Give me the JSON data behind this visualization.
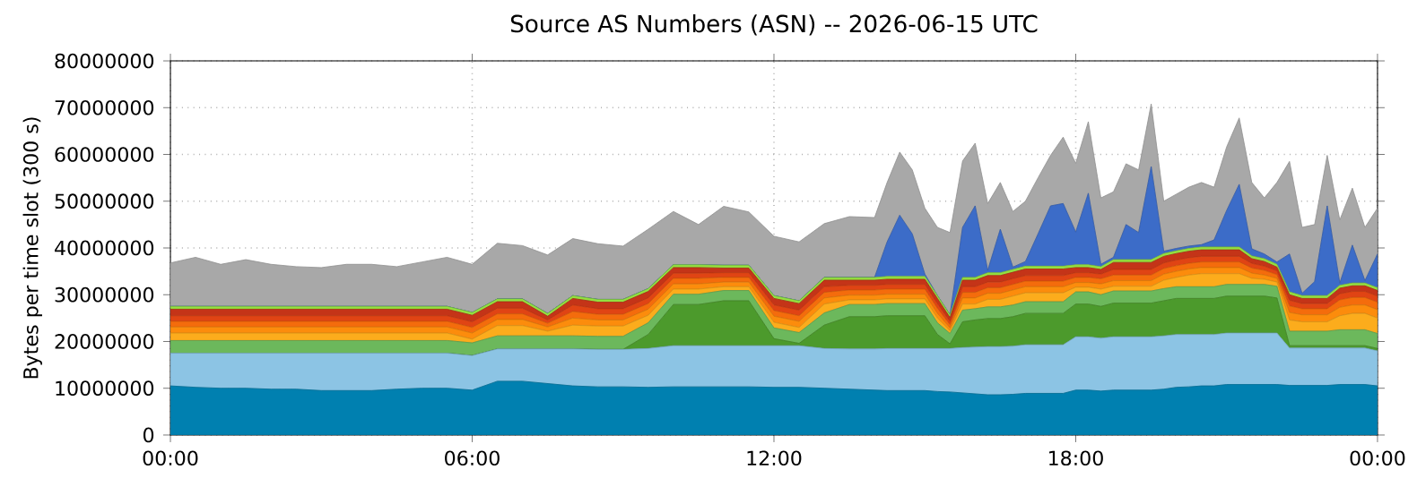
{
  "chart_data": {
    "type": "area",
    "stacked": true,
    "title": "Source AS Numbers (ASN) -- 2026-06-15 UTC",
    "ylabel": "Bytes per time slot (300 s)",
    "grid": true,
    "xlim": [
      0,
      24
    ],
    "ylim": [
      0,
      80000000
    ],
    "xticks": [
      {
        "value": 0,
        "label": "00:00"
      },
      {
        "value": 6,
        "label": "06:00"
      },
      {
        "value": 12,
        "label": "12:00"
      },
      {
        "value": 18,
        "label": "18:00"
      },
      {
        "value": 24,
        "label": "00:00"
      }
    ],
    "yticks": [
      0,
      10000000,
      20000000,
      30000000,
      40000000,
      50000000,
      60000000,
      70000000,
      80000000
    ],
    "x": [
      0,
      0.5,
      1,
      1.5,
      2,
      2.5,
      3,
      3.5,
      4,
      4.5,
      5,
      5.5,
      6,
      6.5,
      7,
      7.5,
      8,
      8.5,
      9,
      9.5,
      10,
      10.5,
      11,
      11.5,
      12,
      12.5,
      13,
      13.5,
      14,
      14.25,
      14.5,
      14.75,
      15,
      15.25,
      15.5,
      15.75,
      16,
      16.25,
      16.5,
      16.75,
      17,
      17.25,
      17.5,
      17.75,
      18,
      18.25,
      18.5,
      18.75,
      19,
      19.25,
      19.5,
      19.75,
      20,
      20.25,
      20.5,
      20.75,
      21,
      21.25,
      21.5,
      21.75,
      22,
      22.25,
      22.5,
      22.75,
      23,
      23.25,
      23.5,
      23.75,
      24
    ],
    "series": [
      {
        "color": "#0080b0",
        "values": [
          10500000.0,
          10200000.0,
          10000000.0,
          10000000.0,
          9800000.0,
          9800000.0,
          9500000.0,
          9500000.0,
          9500000.0,
          9800000.0,
          10000000.0,
          10000000.0,
          9600000.0,
          11500000.0,
          11500000.0,
          11000000.0,
          10500000.0,
          10300000.0,
          10300000.0,
          10200000.0,
          10300000.0,
          10300000.0,
          10300000.0,
          10300000.0,
          10200000.0,
          10200000.0,
          10000000.0,
          9800000.0,
          9600000.0,
          9500000.0,
          9500000.0,
          9500000.0,
          9500000.0,
          9300000.0,
          9200000.0,
          9000000.0,
          8800000.0,
          8600000.0,
          8600000.0,
          8700000.0,
          8900000.0,
          8900000.0,
          8900000.0,
          8900000.0,
          9600000.0,
          9600000.0,
          9400000.0,
          9600000.0,
          9600000.0,
          9600000.0,
          9600000.0,
          9800000.0,
          10200000.0,
          10300000.0,
          10500000.0,
          10500000.0,
          10800000.0,
          10800000.0,
          10800000.0,
          10800000.0,
          10800000.0,
          10600000.0,
          10600000.0,
          10600000.0,
          10600000.0,
          10800000.0,
          10800000.0,
          10800000.0,
          10500000.0
        ]
      },
      {
        "color": "#8cc4e4",
        "values": [
          7000000.0,
          7300000.0,
          7500000.0,
          7500000.0,
          7700000.0,
          7700000.0,
          8000000.0,
          8000000.0,
          8000000.0,
          7700000.0,
          7500000.0,
          7500000.0,
          7400000.0,
          6900000.0,
          6900000.0,
          7400000.0,
          7900000.0,
          8000000.0,
          8000000.0,
          8300000.0,
          8800000.0,
          8800000.0,
          8800000.0,
          8800000.0,
          8900000.0,
          8900000.0,
          8500000.0,
          8600000.0,
          8800000.0,
          9000000.0,
          9000000.0,
          9000000.0,
          9000000.0,
          9200000.0,
          9300000.0,
          9700000.0,
          10000000.0,
          10300000.0,
          10300000.0,
          10300000.0,
          10400000.0,
          10400000.0,
          10400000.0,
          10400000.0,
          11400000.0,
          11400000.0,
          11300000.0,
          11400000.0,
          11400000.0,
          11400000.0,
          11400000.0,
          11400000.0,
          11300000.0,
          11200000.0,
          11000000.0,
          11000000.0,
          11000000.0,
          11000000.0,
          11000000.0,
          11000000.0,
          11000000.0,
          8000000.0,
          8000000.0,
          8000000.0,
          8000000.0,
          7800000.0,
          7800000.0,
          7800000.0,
          7500000.0
        ]
      },
      {
        "color": "#4c9a2c",
        "values": [
          0,
          0,
          0,
          0,
          0,
          0,
          0,
          0,
          0,
          0,
          0,
          0,
          0,
          0,
          0,
          0,
          0,
          0,
          0,
          3000000.0,
          8800000.0,
          8800000.0,
          9600000.0,
          9600000.0,
          1500000.0,
          500000.0,
          5000000.0,
          6900000.0,
          6900000.0,
          7000000.0,
          7000000.0,
          7000000.0,
          7000000.0,
          3000000.0,
          1000000.0,
          5500000.0,
          5800000.0,
          6000000.0,
          6000000.0,
          6300000.0,
          6700000.0,
          6700000.0,
          6700000.0,
          6700000.0,
          7000000.0,
          7000000.0,
          6800000.0,
          7200000.0,
          7200000.0,
          7200000.0,
          7200000.0,
          7500000.0,
          7700000.0,
          7700000.0,
          7700000.0,
          7700000.0,
          7900000.0,
          7900000.0,
          7900000.0,
          7900000.0,
          7500000.0,
          500000.0,
          500000.0,
          500000.0,
          500000.0,
          500000.0,
          500000.0,
          500000.0,
          500000.0
        ]
      },
      {
        "color": "#6cb85c",
        "values": [
          2700000.0,
          2700000.0,
          2700000.0,
          2700000.0,
          2700000.0,
          2700000.0,
          2700000.0,
          2700000.0,
          2700000.0,
          2700000.0,
          2700000.0,
          2700000.0,
          2700000.0,
          2800000.0,
          2800000.0,
          2800000.0,
          2800000.0,
          2800000.0,
          2800000.0,
          2500000.0,
          2200000.0,
          2200000.0,
          2200000.0,
          2200000.0,
          2300000.0,
          2300000.0,
          2600000.0,
          2600000.0,
          2600000.0,
          2600000.0,
          2600000.0,
          2600000.0,
          2600000.0,
          2500000.0,
          2200000.0,
          2500000.0,
          2400000.0,
          2500000.0,
          2500000.0,
          2500000.0,
          2500000.0,
          2500000.0,
          2500000.0,
          2500000.0,
          2600000.0,
          2600000.0,
          2500000.0,
          2600000.0,
          2600000.0,
          2600000.0,
          2600000.0,
          2600000.0,
          2500000.0,
          2500000.0,
          2500000.0,
          2500000.0,
          2500000.0,
          2500000.0,
          2500000.0,
          2500000.0,
          2500000.0,
          3100000.0,
          3100000.0,
          3100000.0,
          3100000.0,
          3400000.0,
          3400000.0,
          3400000.0,
          3200000.0
        ]
      },
      {
        "color": "#fcac1c",
        "values": [
          1600000.0,
          1600000.0,
          1600000.0,
          1600000.0,
          1600000.0,
          1600000.0,
          1600000.0,
          1600000.0,
          1600000.0,
          1600000.0,
          1600000.0,
          1600000.0,
          800000.0,
          2200000.0,
          2200000.0,
          1000000.0,
          2300000.0,
          2200000.0,
          2200000.0,
          1600000.0,
          1100000.0,
          1100000.0,
          800000.0,
          800000.0,
          1200000.0,
          1100000.0,
          1900000.0,
          1000000.0,
          1000000.0,
          1000000.0,
          1000000.0,
          1000000.0,
          1000000.0,
          1000000.0,
          600000.0,
          1300000.0,
          1000000.0,
          1600000.0,
          1600000.0,
          1900000.0,
          1900000.0,
          1900000.0,
          1900000.0,
          1900000.0,
          1000000.0,
          1000000.0,
          1200000.0,
          1000000.0,
          1000000.0,
          1000000.0,
          1000000.0,
          1800000.0,
          2000000.0,
          2500000.0,
          2800000.0,
          2800000.0,
          2300000.0,
          2300000.0,
          1300000.0,
          1100000.0,
          900000.0,
          2400000.0,
          2000000.0,
          2000000.0,
          2000000.0,
          3000000.0,
          3500000.0,
          3500000.0,
          3300000.0
        ]
      },
      {
        "color": "#fc8c0c",
        "values": [
          1300000.0,
          1300000.0,
          1300000.0,
          1300000.0,
          1300000.0,
          1300000.0,
          1300000.0,
          1300000.0,
          1300000.0,
          1300000.0,
          1300000.0,
          1300000.0,
          1300000.0,
          1300000.0,
          1300000.0,
          900000.0,
          1500000.0,
          1300000.0,
          1300000.0,
          1300000.0,
          1100000.0,
          1100000.0,
          1000000.0,
          1000000.0,
          1300000.0,
          1300000.0,
          1300000.0,
          1000000.0,
          1000000.0,
          1000000.0,
          1000000.0,
          1000000.0,
          1000000.0,
          1000000.0,
          600000.0,
          1300000.0,
          1300000.0,
          1300000.0,
          1300000.0,
          1300000.0,
          1300000.0,
          1300000.0,
          1300000.0,
          1300000.0,
          1000000.0,
          1000000.0,
          1100000.0,
          1200000.0,
          1200000.0,
          1200000.0,
          1200000.0,
          1300000.0,
          1300000.0,
          1300000.0,
          1300000.0,
          1300000.0,
          1300000.0,
          1300000.0,
          1100000.0,
          900000.0,
          800000.0,
          1600000.0,
          1500000.0,
          1500000.0,
          1500000.0,
          1800000.0,
          1800000.0,
          1800000.0,
          1800000.0
        ]
      },
      {
        "color": "#f46c0c",
        "values": [
          1200000.0,
          1200000.0,
          1200000.0,
          1200000.0,
          1200000.0,
          1200000.0,
          1200000.0,
          1200000.0,
          1200000.0,
          1200000.0,
          1200000.0,
          1200000.0,
          1200000.0,
          1200000.0,
          1200000.0,
          800000.0,
          1400000.0,
          1200000.0,
          1200000.0,
          1200000.0,
          1200000.0,
          1200000.0,
          1000000.0,
          1000000.0,
          1200000.0,
          1200000.0,
          1200000.0,
          1100000.0,
          1100000.0,
          1100000.0,
          1100000.0,
          1100000.0,
          1100000.0,
          1100000.0,
          700000.0,
          1200000.0,
          1200000.0,
          1200000.0,
          1200000.0,
          1200000.0,
          1200000.0,
          1200000.0,
          1200000.0,
          1200000.0,
          1100000.0,
          1100000.0,
          1100000.0,
          1200000.0,
          1200000.0,
          1200000.0,
          1200000.0,
          1200000.0,
          1200000.0,
          1200000.0,
          1200000.0,
          1200000.0,
          1200000.0,
          1200000.0,
          1100000.0,
          1000000.0,
          800000.0,
          1400000.0,
          1300000.0,
          1300000.0,
          1300000.0,
          1600000.0,
          1600000.0,
          1600000.0,
          1600000.0
        ]
      },
      {
        "color": "#e04414",
        "values": [
          1200000.0,
          1200000.0,
          1200000.0,
          1200000.0,
          1200000.0,
          1200000.0,
          1200000.0,
          1200000.0,
          1200000.0,
          1200000.0,
          1200000.0,
          1200000.0,
          1200000.0,
          1200000.0,
          1200000.0,
          700000.0,
          1400000.0,
          1200000.0,
          1200000.0,
          1200000.0,
          1100000.0,
          1100000.0,
          1000000.0,
          1000000.0,
          1200000.0,
          1200000.0,
          1200000.0,
          1000000.0,
          1000000.0,
          1000000.0,
          1000000.0,
          1000000.0,
          1000000.0,
          1000000.0,
          700000.0,
          1200000.0,
          1200000.0,
          1200000.0,
          1200000.0,
          1200000.0,
          1200000.0,
          1200000.0,
          1200000.0,
          1200000.0,
          1000000.0,
          1000000.0,
          1000000.0,
          1200000.0,
          1200000.0,
          1200000.0,
          1200000.0,
          1200000.0,
          1200000.0,
          1200000.0,
          1200000.0,
          1200000.0,
          1200000.0,
          1200000.0,
          1000000.0,
          900000.0,
          800000.0,
          1200000.0,
          1100000.0,
          1100000.0,
          1100000.0,
          1300000.0,
          1300000.0,
          1300000.0,
          1300000.0
        ]
      },
      {
        "color": "#c43418",
        "values": [
          1400000.0,
          1400000.0,
          1400000.0,
          1400000.0,
          1400000.0,
          1400000.0,
          1400000.0,
          1400000.0,
          1400000.0,
          1400000.0,
          1400000.0,
          1400000.0,
          1400000.0,
          1400000.0,
          1400000.0,
          800000.0,
          1400000.0,
          1400000.0,
          1400000.0,
          1400000.0,
          1200000.0,
          1200000.0,
          1000000.0,
          1000000.0,
          1400000.0,
          1400000.0,
          1400000.0,
          1100000.0,
          1100000.0,
          1100000.0,
          1100000.0,
          1100000.0,
          1100000.0,
          1100000.0,
          800000.0,
          1400000.0,
          1400000.0,
          1400000.0,
          1400000.0,
          1400000.0,
          1400000.0,
          1400000.0,
          1400000.0,
          1400000.0,
          1100000.0,
          1100000.0,
          1000000.0,
          1500000.0,
          1500000.0,
          1500000.0,
          1500000.0,
          1400000.0,
          1400000.0,
          1400000.0,
          1400000.0,
          1400000.0,
          1400000.0,
          1400000.0,
          1000000.0,
          1000000.0,
          800000.0,
          1200000.0,
          1100000.0,
          1100000.0,
          1100000.0,
          1200000.0,
          1200000.0,
          1200000.0,
          1200000.0
        ]
      },
      {
        "color": "#94e040",
        "values": [
          600000.0,
          600000.0,
          600000.0,
          600000.0,
          600000.0,
          600000.0,
          600000.0,
          600000.0,
          600000.0,
          600000.0,
          600000.0,
          600000.0,
          600000.0,
          600000.0,
          600000.0,
          600000.0,
          600000.0,
          600000.0,
          600000.0,
          600000.0,
          600000.0,
          600000.0,
          600000.0,
          600000.0,
          600000.0,
          600000.0,
          600000.0,
          600000.0,
          600000.0,
          600000.0,
          600000.0,
          600000.0,
          600000.0,
          600000.0,
          600000.0,
          600000.0,
          600000.0,
          600000.0,
          600000.0,
          600000.0,
          600000.0,
          600000.0,
          600000.0,
          600000.0,
          600000.0,
          600000.0,
          600000.0,
          600000.0,
          600000.0,
          600000.0,
          600000.0,
          600000.0,
          600000.0,
          600000.0,
          600000.0,
          600000.0,
          600000.0,
          600000.0,
          600000.0,
          600000.0,
          600000.0,
          600000.0,
          600000.0,
          600000.0,
          600000.0,
          600000.0,
          600000.0,
          600000.0,
          600000.0
        ]
      },
      {
        "color": "#3c6cc8",
        "values": [
          0,
          0,
          0,
          0,
          0,
          0,
          0,
          0,
          0,
          0,
          0,
          0,
          0,
          0,
          0,
          0,
          0,
          0,
          0,
          0,
          0,
          0,
          0,
          0,
          0,
          0,
          0,
          0,
          0,
          7400000.0,
          13100000.0,
          9100000.0,
          500000.0,
          0,
          0,
          10700000.0,
          15300000.0,
          500000.0,
          9300000.0,
          500000.0,
          1000000.0,
          6900000.0,
          12900000.0,
          13400000.0,
          7000000.0,
          15300000.0,
          500000.0,
          500000.0,
          7500000.0,
          5800000.0,
          19900000.0,
          500000.0,
          500000.0,
          500000.0,
          500000.0,
          1500000.0,
          7800000.0,
          13400000.0,
          1500000.0,
          1000000.0,
          500000.0,
          8100000.0,
          500000.0,
          3000000.0,
          19200000.0,
          500000.0,
          8100000.0,
          500000.0,
          7200000.0
        ]
      },
      {
        "color": "#a8a8a8",
        "values": [
          9300000.0,
          10500000.0,
          9000000.0,
          10000000.0,
          9000000.0,
          8500000.0,
          8300000.0,
          9000000.0,
          9000000.0,
          8500000.0,
          9500000.0,
          10500000.0,
          10300000.0,
          11900000.0,
          11400000.0,
          12500000.0,
          12200000.0,
          11900000.0,
          11400000.0,
          12700000.0,
          11400000.0,
          8600000.0,
          12600000.0,
          11400000.0,
          12700000.0,
          12600000.0,
          11500000.0,
          13000000.0,
          12800000.0,
          12700000.0,
          13500000.0,
          13700000.0,
          14100000.0,
          14600000.0,
          17600000.0,
          14200000.0,
          13400000.0,
          14300000.0,
          10000000.0,
          11900000.0,
          12900000.0,
          12000000.0,
          10800000.0,
          14200000.0,
          14700000.0,
          15300000.0,
          14200000.0,
          14000000.0,
          13000000.0,
          13400000.0,
          13400000.0,
          10700000.0,
          11600000.0,
          12600000.0,
          13300000.0,
          11300000.0,
          13600000.0,
          14200000.0,
          14200000.0,
          12000000.0,
          17000000.0,
          19800000.0,
          14100000.0,
          12200000.0,
          10800000.0,
          13500000.0,
          12200000.0,
          11400000.0,
          9800000.0
        ]
      }
    ]
  }
}
